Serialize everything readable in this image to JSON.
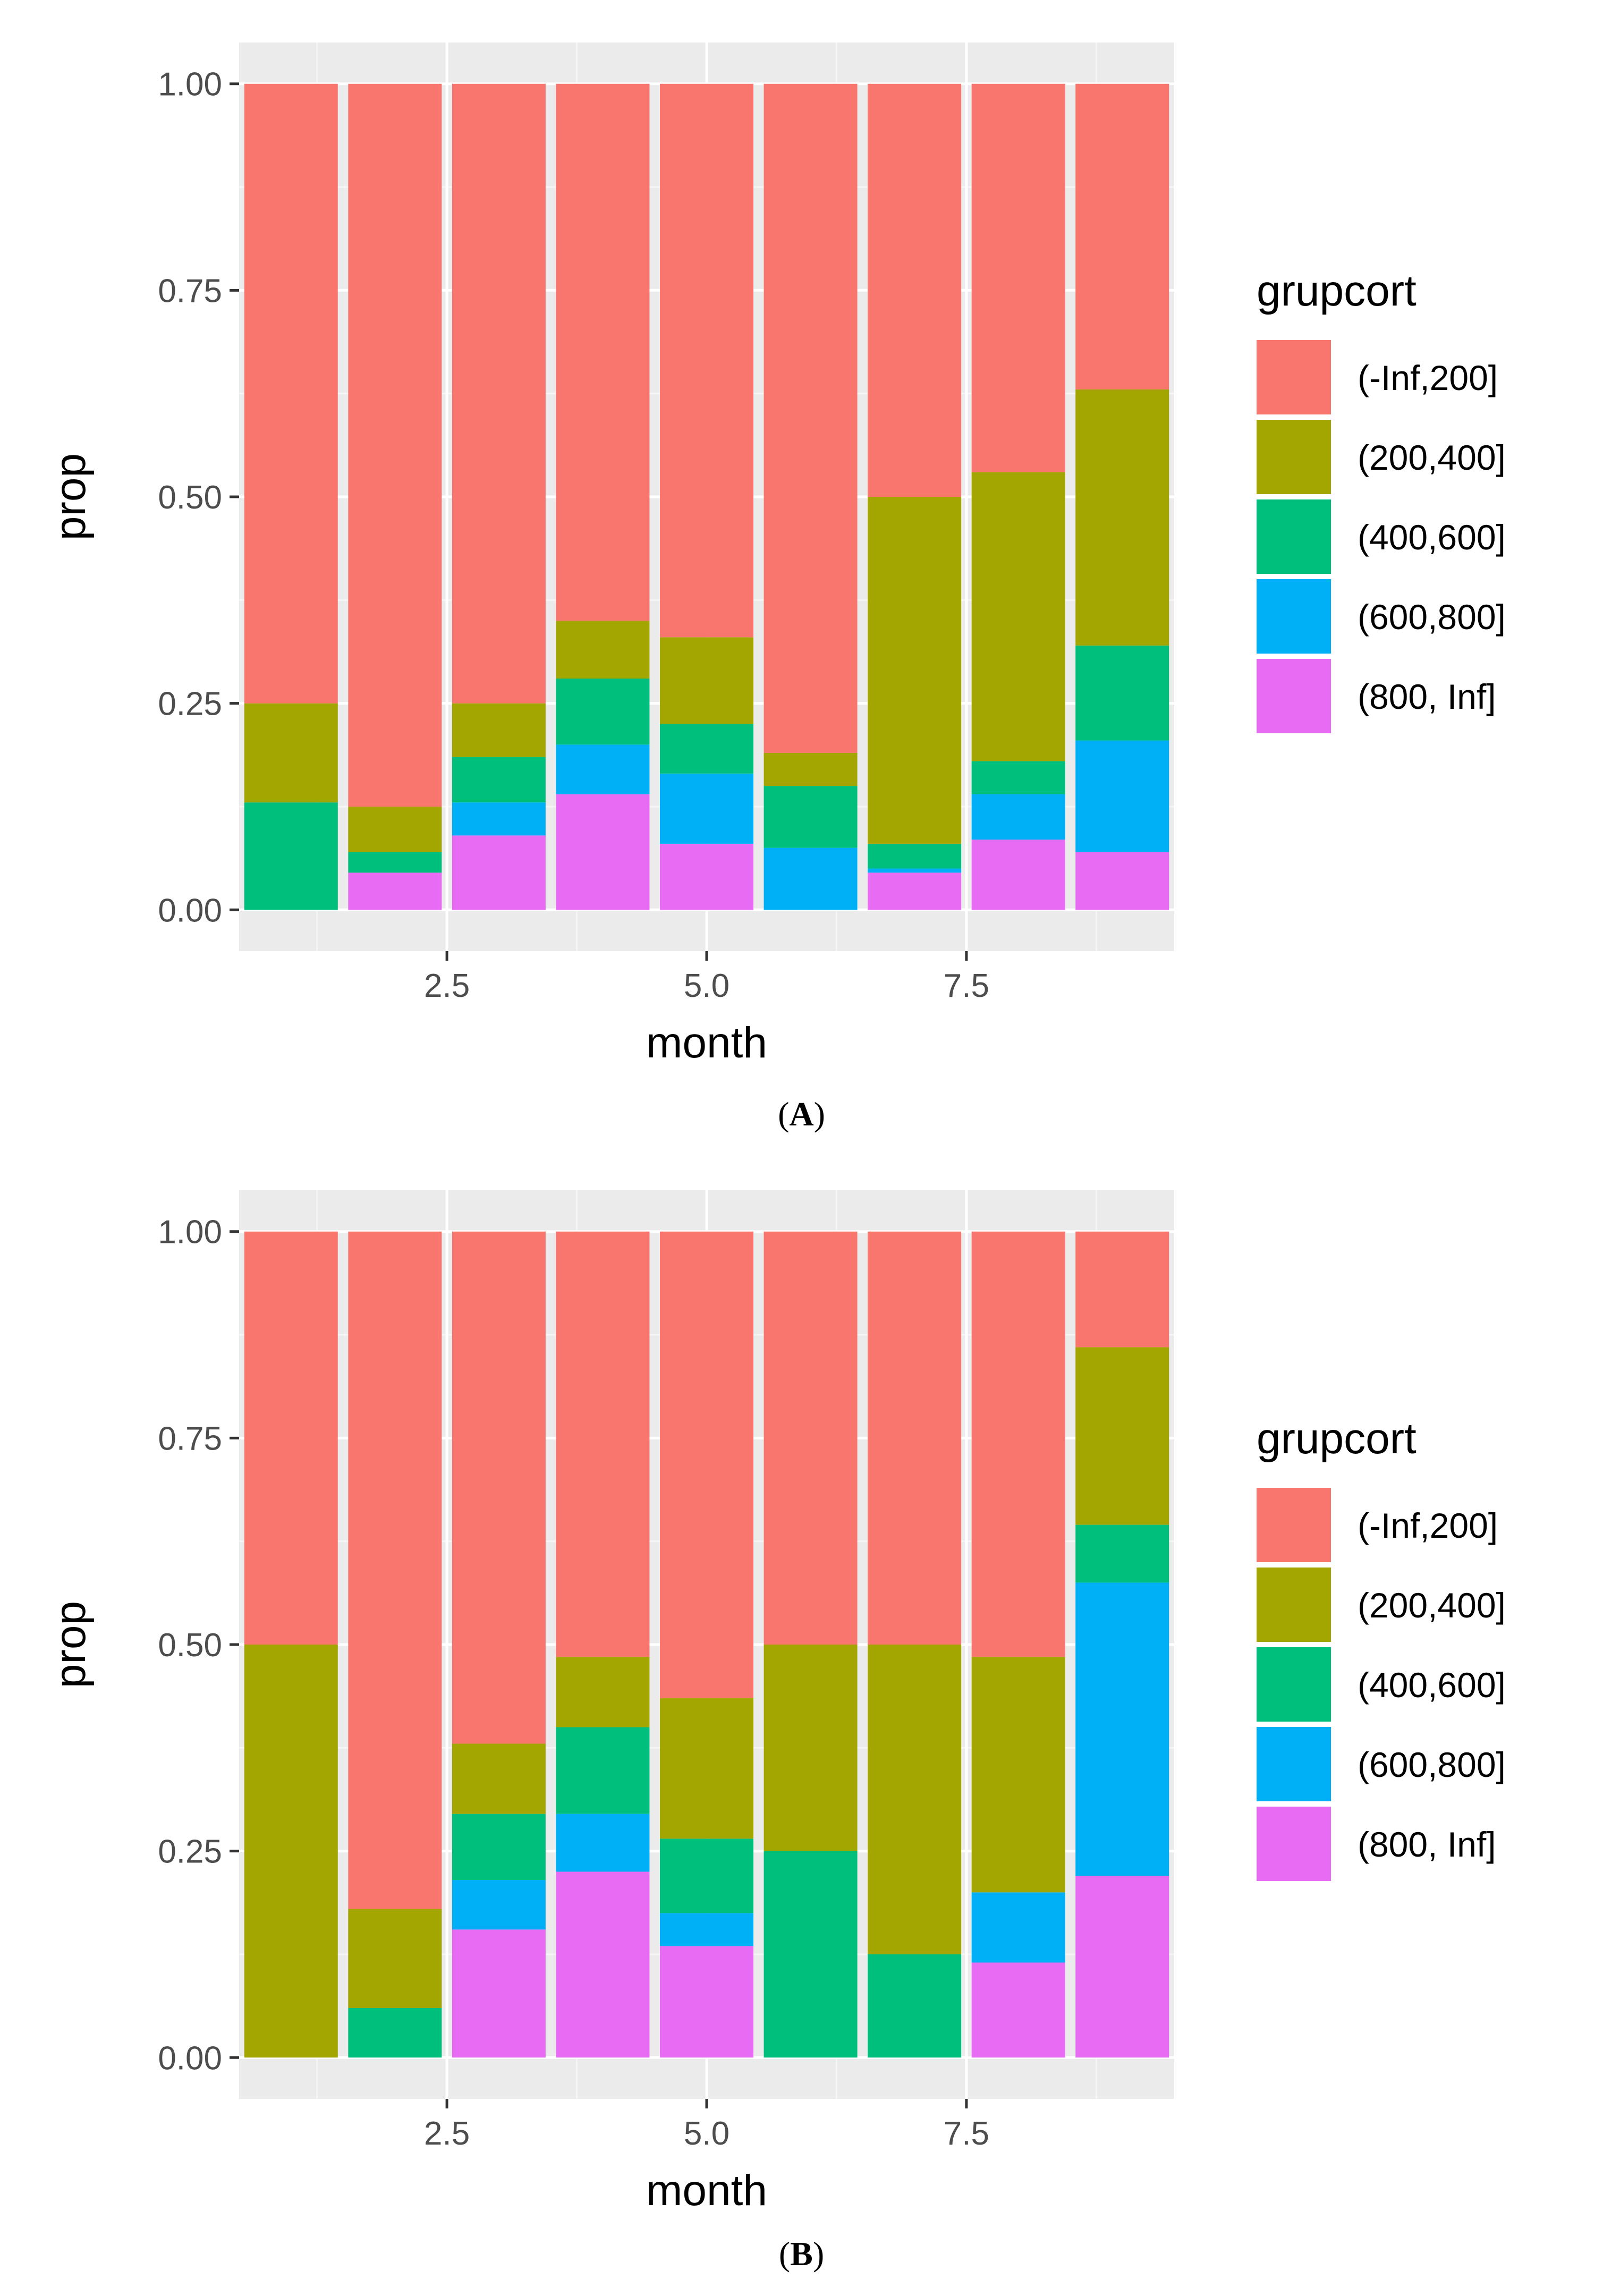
{
  "chart_data": [
    {
      "type": "bar",
      "stacked": true,
      "panel_label": "A",
      "xlabel": "month",
      "ylabel": "prop",
      "xlim": [
        0.5,
        9.5
      ],
      "ylim": [
        -0.05,
        1.05
      ],
      "x_ticks": [
        "2.5",
        "5.0",
        "7.5"
      ],
      "x_tick_values": [
        2.5,
        5.0,
        7.5
      ],
      "y_ticks": [
        "0.00",
        "0.25",
        "0.50",
        "0.75",
        "1.00"
      ],
      "y_tick_values": [
        0,
        0.25,
        0.5,
        0.75,
        1.0
      ],
      "x": [
        1,
        2,
        3,
        4,
        5,
        6,
        7,
        8,
        9
      ],
      "legend": {
        "title": "grupcort",
        "position": "right"
      },
      "series": [
        {
          "name": "(-Inf,200]",
          "color": "#F8766D",
          "values": [
            0.75,
            0.875,
            0.75,
            0.65,
            0.67,
            0.81,
            0.5,
            0.47,
            0.37
          ]
        },
        {
          "name": "(200,400]",
          "color": "#A3A500",
          "values": [
            0.12,
            0.055,
            0.065,
            0.07,
            0.105,
            0.04,
            0.42,
            0.35,
            0.31
          ]
        },
        {
          "name": "(400,600]",
          "color": "#00BF7D",
          "values": [
            0.13,
            0.025,
            0.055,
            0.08,
            0.06,
            0.075,
            0.03,
            0.04,
            0.115
          ]
        },
        {
          "name": "(600,800]",
          "color": "#00B0F6",
          "values": [
            0.0,
            0.0,
            0.04,
            0.06,
            0.085,
            0.075,
            0.005,
            0.055,
            0.135
          ]
        },
        {
          "name": "(800, Inf]",
          "color": "#E76BF3",
          "values": [
            0.0,
            0.045,
            0.09,
            0.14,
            0.08,
            0.0,
            0.045,
            0.085,
            0.07
          ]
        }
      ]
    },
    {
      "type": "bar",
      "stacked": true,
      "panel_label": "B",
      "xlabel": "month",
      "ylabel": "prop",
      "xlim": [
        0.5,
        9.5
      ],
      "ylim": [
        -0.05,
        1.05
      ],
      "x_ticks": [
        "2.5",
        "5.0",
        "7.5"
      ],
      "x_tick_values": [
        2.5,
        5.0,
        7.5
      ],
      "y_ticks": [
        "0.00",
        "0.25",
        "0.50",
        "0.75",
        "1.00"
      ],
      "y_tick_values": [
        0,
        0.25,
        0.5,
        0.75,
        1.0
      ],
      "x": [
        1,
        2,
        3,
        4,
        5,
        6,
        7,
        8,
        9
      ],
      "legend": {
        "title": "grupcort",
        "position": "right"
      },
      "series": [
        {
          "name": "(-Inf,200]",
          "color": "#F8766D",
          "values": [
            0.5,
            0.82,
            0.62,
            0.515,
            0.565,
            0.5,
            0.5,
            0.515,
            0.14
          ]
        },
        {
          "name": "(200,400]",
          "color": "#A3A500",
          "values": [
            0.5,
            0.12,
            0.085,
            0.085,
            0.17,
            0.25,
            0.375,
            0.285,
            0.215
          ]
        },
        {
          "name": "(400,600]",
          "color": "#00BF7D",
          "values": [
            0.0,
            0.06,
            0.08,
            0.105,
            0.09,
            0.25,
            0.125,
            0.0,
            0.07
          ]
        },
        {
          "name": "(600,800]",
          "color": "#00B0F6",
          "values": [
            0.0,
            0.0,
            0.06,
            0.07,
            0.04,
            0.0,
            0.0,
            0.085,
            0.355
          ]
        },
        {
          "name": "(800, Inf]",
          "color": "#E76BF3",
          "values": [
            0.0,
            0.0,
            0.155,
            0.225,
            0.135,
            0.0,
            0.0,
            0.115,
            0.22
          ]
        }
      ]
    }
  ],
  "panels": {
    "a_label": "A",
    "b_label": "B"
  }
}
